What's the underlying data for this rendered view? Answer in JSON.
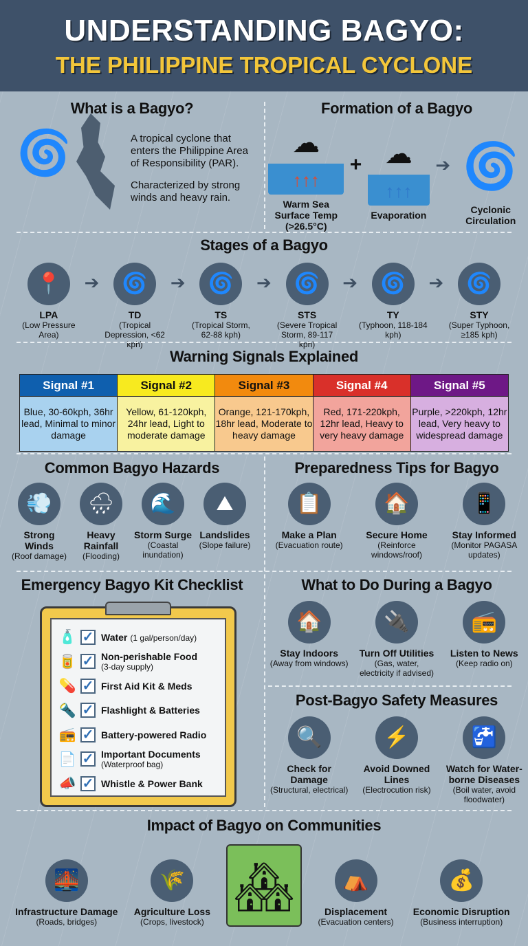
{
  "header": {
    "title": "UNDERSTANDING BAGYO:",
    "subtitle": "THE PHILIPPINE TROPICAL CYCLONE"
  },
  "what": {
    "title": "What is a Bagyo?",
    "p1": "A tropical cyclone that enters the Philippine Area of Responsibility (PAR).",
    "p2": "Characterized by strong winds and heavy rain."
  },
  "formation": {
    "title": "Formation of a Bagyo",
    "steps": [
      {
        "label": "Warm Sea Surface Temp (>26.5°C)",
        "icon": "warm-sea-icon"
      },
      {
        "label": "Evaporation",
        "icon": "evaporation-icon"
      },
      {
        "label": "Cyclonic Circulation",
        "icon": "cyclone-icon"
      }
    ],
    "plus": "+"
  },
  "stages": {
    "title": "Stages of a Bagyo",
    "items": [
      {
        "code": "LPA",
        "desc": "(Low Pressure Area)"
      },
      {
        "code": "TD",
        "desc": "(Tropical Depression, <62 kph)"
      },
      {
        "code": "TS",
        "desc": "(Tropical Storm, 62-88 kph)"
      },
      {
        "code": "STS",
        "desc": "(Severe Tropical Storm, 89-117 kph)"
      },
      {
        "code": "TY",
        "desc": "(Typhoon, 118-184 kph)"
      },
      {
        "code": "STY",
        "desc": "(Super Typhoon, ≥185 kph)"
      }
    ]
  },
  "signals": {
    "title": "Warning Signals Explained",
    "items": [
      {
        "name": "Signal #1",
        "desc": "Blue, 30-60kph, 36hr lead, Minimal to minor damage",
        "head": "#0f5fae",
        "body": "#a9d2ef",
        "fg": "#fff"
      },
      {
        "name": "Signal #2",
        "desc": "Yellow, 61-120kph, 24hr lead, Light to moderate damage",
        "head": "#f7ea1f",
        "body": "#f8f2a0",
        "fg": "#111"
      },
      {
        "name": "Signal #3",
        "desc": "Orange, 121-170kph, 18hr lead, Moderate to heavy damage",
        "head": "#f28a0e",
        "body": "#f8c98e",
        "fg": "#111"
      },
      {
        "name": "Signal #4",
        "desc": "Red, 171-220kph, 12hr lead, Heavy to very heavy damage",
        "head": "#d9302a",
        "body": "#f2a49c",
        "fg": "#fff"
      },
      {
        "name": "Signal #5",
        "desc": "Purple, >220kph, 12hr lead, Very heavy to widespread damage",
        "head": "#6e1886",
        "body": "#d7afe0",
        "fg": "#fff"
      }
    ]
  },
  "hazards": {
    "title": "Common Bagyo Hazards",
    "items": [
      {
        "name": "Strong Winds",
        "desc": "(Roof damage)"
      },
      {
        "name": "Heavy Rainfall",
        "desc": "(Flooding)"
      },
      {
        "name": "Storm Surge",
        "desc": "(Coastal inundation)"
      },
      {
        "name": "Landslides",
        "desc": "(Slope failure)"
      }
    ]
  },
  "prep": {
    "title": "Preparedness Tips for Bagyo",
    "items": [
      {
        "name": "Make a Plan",
        "desc": "(Evacuation route)"
      },
      {
        "name": "Secure Home",
        "desc": "(Reinforce windows/roof)"
      },
      {
        "name": "Stay Informed",
        "desc": "(Monitor PAGASA updates)"
      }
    ]
  },
  "kit": {
    "title": "Emergency Bagyo Kit Checklist",
    "items": [
      {
        "name": "Water",
        "note": "(1 gal/person/day)",
        "inline": true
      },
      {
        "name": "Non-perishable Food",
        "note": "(3-day supply)"
      },
      {
        "name": "First Aid Kit & Meds",
        "note": ""
      },
      {
        "name": "Flashlight & Batteries",
        "note": ""
      },
      {
        "name": "Battery-powered Radio",
        "note": ""
      },
      {
        "name": "Important Documents",
        "note": "(Waterproof bag)"
      },
      {
        "name": "Whistle & Power Bank",
        "note": ""
      }
    ]
  },
  "during": {
    "title": "What to Do During a Bagyo",
    "items": [
      {
        "name": "Stay Indoors",
        "desc": "(Away from windows)"
      },
      {
        "name": "Turn Off Utilities",
        "desc": "(Gas, water, electricity if advised)"
      },
      {
        "name": "Listen to News",
        "desc": "(Keep radio on)"
      }
    ]
  },
  "post": {
    "title": "Post-Bagyo Safety Measures",
    "items": [
      {
        "name": "Check for Damage",
        "desc": "(Structural, electrical)"
      },
      {
        "name": "Avoid Downed Lines",
        "desc": "(Electrocution risk)"
      },
      {
        "name": "Watch for Water-borne Diseases",
        "desc": "(Boil water, avoid floodwater)"
      }
    ]
  },
  "impact": {
    "title": "Impact of Bagyo on Communities",
    "items": [
      {
        "name": "Infrastructure Damage",
        "desc": "(Roads, bridges)"
      },
      {
        "name": "Agriculture Loss",
        "desc": "(Crops, livestock)"
      },
      {
        "name": "Displacement",
        "desc": "(Evacuation centers)"
      },
      {
        "name": "Economic Disruption",
        "desc": "(Business interruption)"
      }
    ]
  }
}
